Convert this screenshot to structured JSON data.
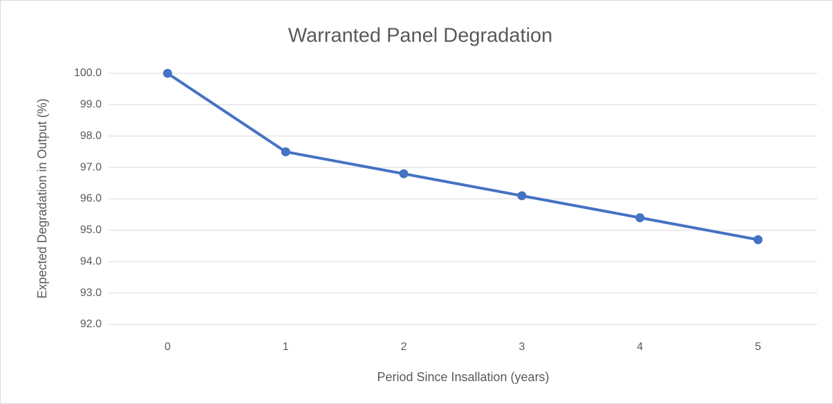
{
  "chart_data": {
    "type": "line",
    "title": "Warranted Panel Degradation",
    "x_label": "Period Since Insallation (years)",
    "y_label": "Expected Degradation in Output (%)",
    "categories": [
      "0",
      "1",
      "2",
      "3",
      "4",
      "5"
    ],
    "values": [
      100,
      97.5,
      96.8,
      96.1,
      95.4,
      94.7
    ],
    "color": "#4472c4",
    "ylim": [
      92,
      100
    ],
    "yticks": [
      {
        "value": 92,
        "label": "92.0"
      },
      {
        "value": 93,
        "label": "93.0"
      },
      {
        "value": 94,
        "label": "94.0"
      },
      {
        "value": 95,
        "label": "95.0"
      },
      {
        "value": 96,
        "label": "96.0"
      },
      {
        "value": 97,
        "label": "97.0"
      },
      {
        "value": 98,
        "label": "98.0"
      },
      {
        "value": 99,
        "label": "99.0"
      },
      {
        "value": 100,
        "label": "100.0"
      }
    ],
    "grid": true
  }
}
